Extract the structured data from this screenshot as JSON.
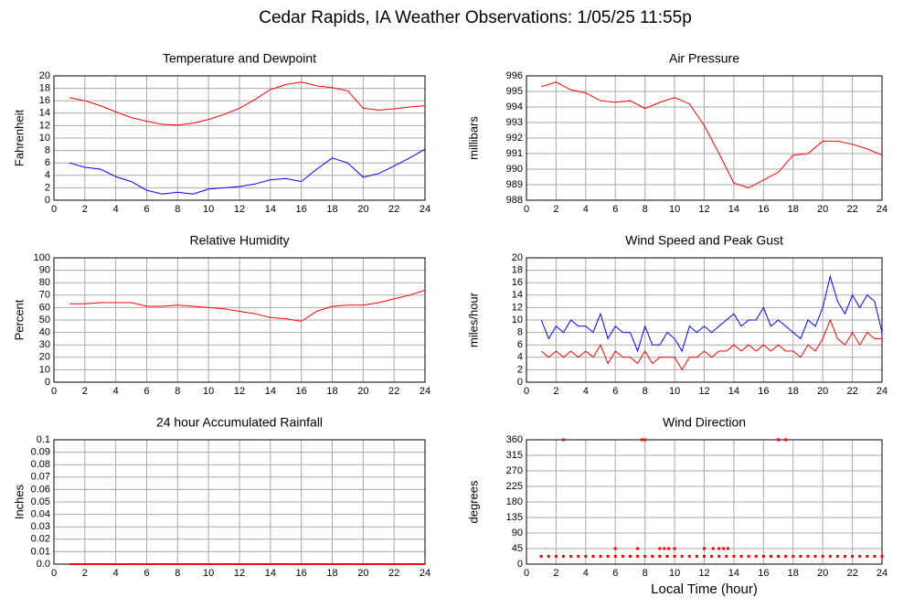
{
  "title": "Cedar Rapids, IA Weather Observations: 1/05/25 11:55p",
  "chart_data": [
    {
      "type": "line",
      "title": "Temperature and Dewpoint",
      "ylabel": "Fahrenheit",
      "xlim": [
        0,
        24
      ],
      "xticks": [
        0,
        2,
        4,
        6,
        8,
        10,
        12,
        14,
        16,
        18,
        20,
        22,
        24
      ],
      "ylim": [
        0,
        20
      ],
      "yticks": [
        0,
        2,
        4,
        6,
        8,
        10,
        12,
        14,
        16,
        18,
        20
      ],
      "grid": true,
      "x": [
        1,
        2,
        3,
        4,
        5,
        6,
        7,
        8,
        9,
        10,
        11,
        12,
        13,
        14,
        15,
        16,
        17,
        18,
        19,
        20,
        21,
        22,
        23,
        24
      ],
      "series": [
        {
          "color": "#ff0000",
          "values": [
            16.5,
            16,
            15.2,
            14.2,
            13.3,
            12.7,
            12.2,
            12.1,
            12.4,
            13,
            13.8,
            14.8,
            16.2,
            17.8,
            18.6,
            19,
            18.4,
            18.1,
            17.6,
            14.8,
            14.5,
            14.7,
            15,
            15.2
          ]
        },
        {
          "color": "#0000ff",
          "values": [
            6,
            5.3,
            5,
            3.8,
            3,
            1.6,
            1,
            1.3,
            1,
            1.8,
            2,
            2.2,
            2.6,
            3.3,
            3.5,
            3,
            5,
            6.8,
            6,
            3.7,
            4.3,
            5.5,
            6.8,
            8.2
          ]
        }
      ]
    },
    {
      "type": "line",
      "title": "Air Pressure",
      "ylabel": "millibars",
      "xlim": [
        0,
        24
      ],
      "xticks": [
        0,
        2,
        4,
        6,
        8,
        10,
        12,
        14,
        16,
        18,
        20,
        22,
        24
      ],
      "ylim": [
        988,
        996
      ],
      "yticks": [
        988,
        989,
        990,
        991,
        992,
        993,
        994,
        995,
        996
      ],
      "grid": true,
      "x": [
        1,
        2,
        3,
        4,
        5,
        6,
        7,
        8,
        9,
        10,
        11,
        12,
        13,
        14,
        15,
        16,
        17,
        18,
        19,
        20,
        21,
        22,
        23,
        24
      ],
      "series": [
        {
          "color": "#ff0000",
          "values": [
            995.3,
            995.6,
            995.1,
            994.9,
            994.4,
            994.3,
            994.4,
            993.9,
            994.3,
            994.6,
            994.2,
            992.8,
            991,
            989.1,
            988.8,
            989.3,
            989.8,
            990.9,
            991,
            991.8,
            991.8,
            991.6,
            991.3,
            990.9
          ]
        }
      ]
    },
    {
      "type": "line",
      "title": "Relative Humidity",
      "ylabel": "Percent",
      "xlim": [
        0,
        24
      ],
      "xticks": [
        0,
        2,
        4,
        6,
        8,
        10,
        12,
        14,
        16,
        18,
        20,
        22,
        24
      ],
      "ylim": [
        0,
        100
      ],
      "yticks": [
        0,
        10,
        20,
        30,
        40,
        50,
        60,
        70,
        80,
        90,
        100
      ],
      "grid": true,
      "x": [
        1,
        2,
        3,
        4,
        5,
        6,
        7,
        8,
        9,
        10,
        11,
        12,
        13,
        14,
        15,
        16,
        17,
        18,
        19,
        20,
        21,
        22,
        23,
        24
      ],
      "series": [
        {
          "color": "#ff0000",
          "values": [
            63,
            63,
            64,
            64,
            64,
            61,
            61,
            62,
            61,
            60,
            59,
            57,
            55,
            52,
            51,
            49,
            57,
            61,
            62,
            62,
            64,
            67,
            70,
            74
          ]
        }
      ]
    },
    {
      "type": "line",
      "title": "Wind Speed and Peak Gust",
      "ylabel": "miles/hour",
      "xlim": [
        0,
        24
      ],
      "xticks": [
        0,
        2,
        4,
        6,
        8,
        10,
        12,
        14,
        16,
        18,
        20,
        22,
        24
      ],
      "ylim": [
        0,
        20
      ],
      "yticks": [
        0,
        2,
        4,
        6,
        8,
        10,
        12,
        14,
        16,
        18,
        20
      ],
      "grid": true,
      "x": [
        1,
        1.5,
        2,
        2.5,
        3,
        3.5,
        4,
        4.5,
        5,
        5.5,
        6,
        6.5,
        7,
        7.5,
        8,
        8.5,
        9,
        9.5,
        10,
        10.5,
        11,
        11.5,
        12,
        12.5,
        13,
        13.5,
        14,
        14.5,
        15,
        15.5,
        16,
        16.5,
        17,
        17.5,
        18,
        18.5,
        19,
        19.5,
        20,
        20.5,
        21,
        21.5,
        22,
        22.5,
        23,
        23.5,
        24
      ],
      "series": [
        {
          "color": "#0000ff",
          "values": [
            10,
            7,
            9,
            8,
            10,
            9,
            9,
            8,
            11,
            7,
            9,
            8,
            8,
            5,
            9,
            6,
            6,
            8,
            7,
            5,
            9,
            8,
            9,
            8,
            9,
            10,
            11,
            9,
            10,
            10,
            12,
            9,
            10,
            9,
            8,
            7,
            10,
            9,
            12,
            17,
            13,
            11,
            14,
            12,
            14,
            13,
            8
          ]
        },
        {
          "color": "#ff0000",
          "values": [
            5,
            4,
            5,
            4,
            5,
            4,
            5,
            4,
            6,
            3,
            5,
            4,
            4,
            3,
            5,
            3,
            4,
            4,
            4,
            2,
            4,
            4,
            5,
            4,
            5,
            5,
            6,
            5,
            6,
            5,
            6,
            5,
            6,
            5,
            5,
            4,
            6,
            5,
            7,
            10,
            7,
            6,
            8,
            6,
            8,
            7,
            7
          ]
        }
      ]
    },
    {
      "type": "line",
      "title": "24 hour Accumulated Rainfall",
      "ylabel": "Inches",
      "xlim": [
        0,
        24
      ],
      "xticks": [
        0,
        2,
        4,
        6,
        8,
        10,
        12,
        14,
        16,
        18,
        20,
        22,
        24
      ],
      "ylim": [
        0,
        0.1
      ],
      "yticks": [
        {
          "value": 0,
          "label": "0.0"
        },
        0.01,
        0.02,
        0.03,
        0.04,
        0.05,
        0.06,
        0.07,
        0.08,
        0.09,
        {
          "value": 0.1,
          "label": "0.1"
        }
      ],
      "grid": true,
      "x": [
        1,
        24
      ],
      "series": [
        {
          "color": "#ff0000",
          "values": [
            0,
            0
          ]
        }
      ]
    },
    {
      "type": "scatter",
      "title": "Wind Direction",
      "ylabel": "degrees",
      "xlabel": "Local Time (hour)",
      "xlim": [
        0,
        24
      ],
      "xticks": [
        0,
        2,
        4,
        6,
        8,
        10,
        12,
        14,
        16,
        18,
        20,
        22,
        24
      ],
      "ylim": [
        0,
        360
      ],
      "yticks": [
        0,
        45,
        90,
        135,
        180,
        225,
        270,
        315,
        360
      ],
      "grid": true,
      "x": [
        1,
        1.5,
        2,
        2.5,
        3,
        3.5,
        4,
        4.5,
        5,
        5.5,
        6,
        6.5,
        7,
        7.5,
        8,
        8.5,
        9,
        9.5,
        10,
        10.5,
        11,
        11.5,
        12,
        12.5,
        13,
        13.5,
        14,
        14.5,
        15,
        15.5,
        16,
        16.5,
        17,
        17.5,
        18,
        18.5,
        19,
        19.5,
        20,
        20.5,
        21,
        21.5,
        22,
        22.5,
        23,
        23.5,
        24,
        2.5,
        7.8,
        8.0,
        17,
        17.5,
        6,
        7.5,
        9,
        9.3,
        9.6,
        10,
        12,
        12.6,
        13,
        13.3,
        13.6
      ],
      "series": [
        {
          "color": "#ff0000",
          "values": [
            22.5,
            22.5,
            22.5,
            22.5,
            22.5,
            22.5,
            22.5,
            22.5,
            22.5,
            22.5,
            22.5,
            22.5,
            22.5,
            22.5,
            22.5,
            22.5,
            22.5,
            22.5,
            22.5,
            22.5,
            22.5,
            22.5,
            22.5,
            22.5,
            22.5,
            22.5,
            22.5,
            22.5,
            22.5,
            22.5,
            22.5,
            22.5,
            22.5,
            22.5,
            22.5,
            22.5,
            22.5,
            22.5,
            22.5,
            22.5,
            22.5,
            22.5,
            22.5,
            22.5,
            22.5,
            22.5,
            22.5,
            360,
            360,
            360,
            360,
            360,
            45,
            45,
            45,
            45,
            45,
            45,
            45,
            45,
            45,
            45,
            45
          ]
        }
      ]
    }
  ]
}
